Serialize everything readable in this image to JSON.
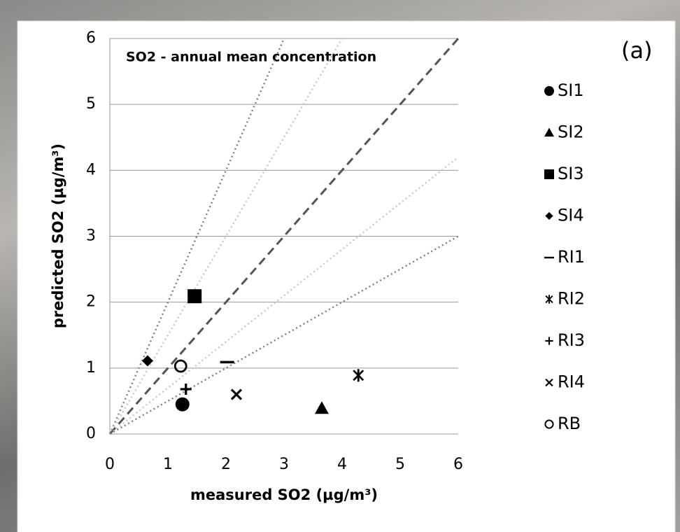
{
  "chart_data": {
    "type": "scatter",
    "title": "SO2 - annual mean concentration",
    "annotation": "(a)",
    "x_label": "measured SO2 (µg/m³)",
    "y_label": "predicted SO2 (µg/m³)",
    "xlim": [
      0,
      6
    ],
    "xticks": [
      0,
      1,
      2,
      3,
      4,
      5,
      6
    ],
    "ylim": [
      0,
      6
    ],
    "yticks": [
      0,
      1,
      2,
      3,
      4,
      5,
      6
    ],
    "grid": true,
    "legend": "right",
    "reference_lines": [
      {
        "slope": 2,
        "style": "dotted",
        "color": "#808080"
      },
      {
        "slope": 1.5,
        "style": "dotted",
        "color": "#c8c8c8"
      },
      {
        "slope": 1,
        "style": "dashed",
        "color": "#555555"
      },
      {
        "slope": 0.7,
        "style": "dotted",
        "color": "#c8c8c8"
      },
      {
        "slope": 0.5,
        "style": "dotted",
        "color": "#808080"
      }
    ],
    "series": [
      {
        "name": "SI1",
        "marker": "circle",
        "color": "#000000",
        "x": [
          1.25
        ],
        "values": [
          0.45
        ]
      },
      {
        "name": "SI2",
        "marker": "triangle",
        "color": "#000000",
        "x": [
          3.65
        ],
        "values": [
          0.39
        ]
      },
      {
        "name": "SI3",
        "marker": "square",
        "color": "#000000",
        "x": [
          1.46
        ],
        "values": [
          2.09
        ]
      },
      {
        "name": "SI4",
        "marker": "diamond",
        "color": "#000000",
        "x": [
          0.65
        ],
        "values": [
          1.11
        ]
      },
      {
        "name": "RI1",
        "marker": "dash",
        "color": "#000000",
        "x": [
          2.02
        ],
        "values": [
          1.09
        ]
      },
      {
        "name": "RI2",
        "marker": "asterisk",
        "color": "#000000",
        "x": [
          4.28
        ],
        "values": [
          0.89
        ]
      },
      {
        "name": "RI3",
        "marker": "plus",
        "color": "#000000",
        "x": [
          1.31
        ],
        "values": [
          0.68
        ]
      },
      {
        "name": "RI4",
        "marker": "cross",
        "color": "#000000",
        "x": [
          2.18
        ],
        "values": [
          0.6
        ]
      },
      {
        "name": "RB",
        "marker": "open-circle",
        "color": "#000000",
        "x": [
          1.22
        ],
        "values": [
          1.03
        ]
      }
    ]
  }
}
